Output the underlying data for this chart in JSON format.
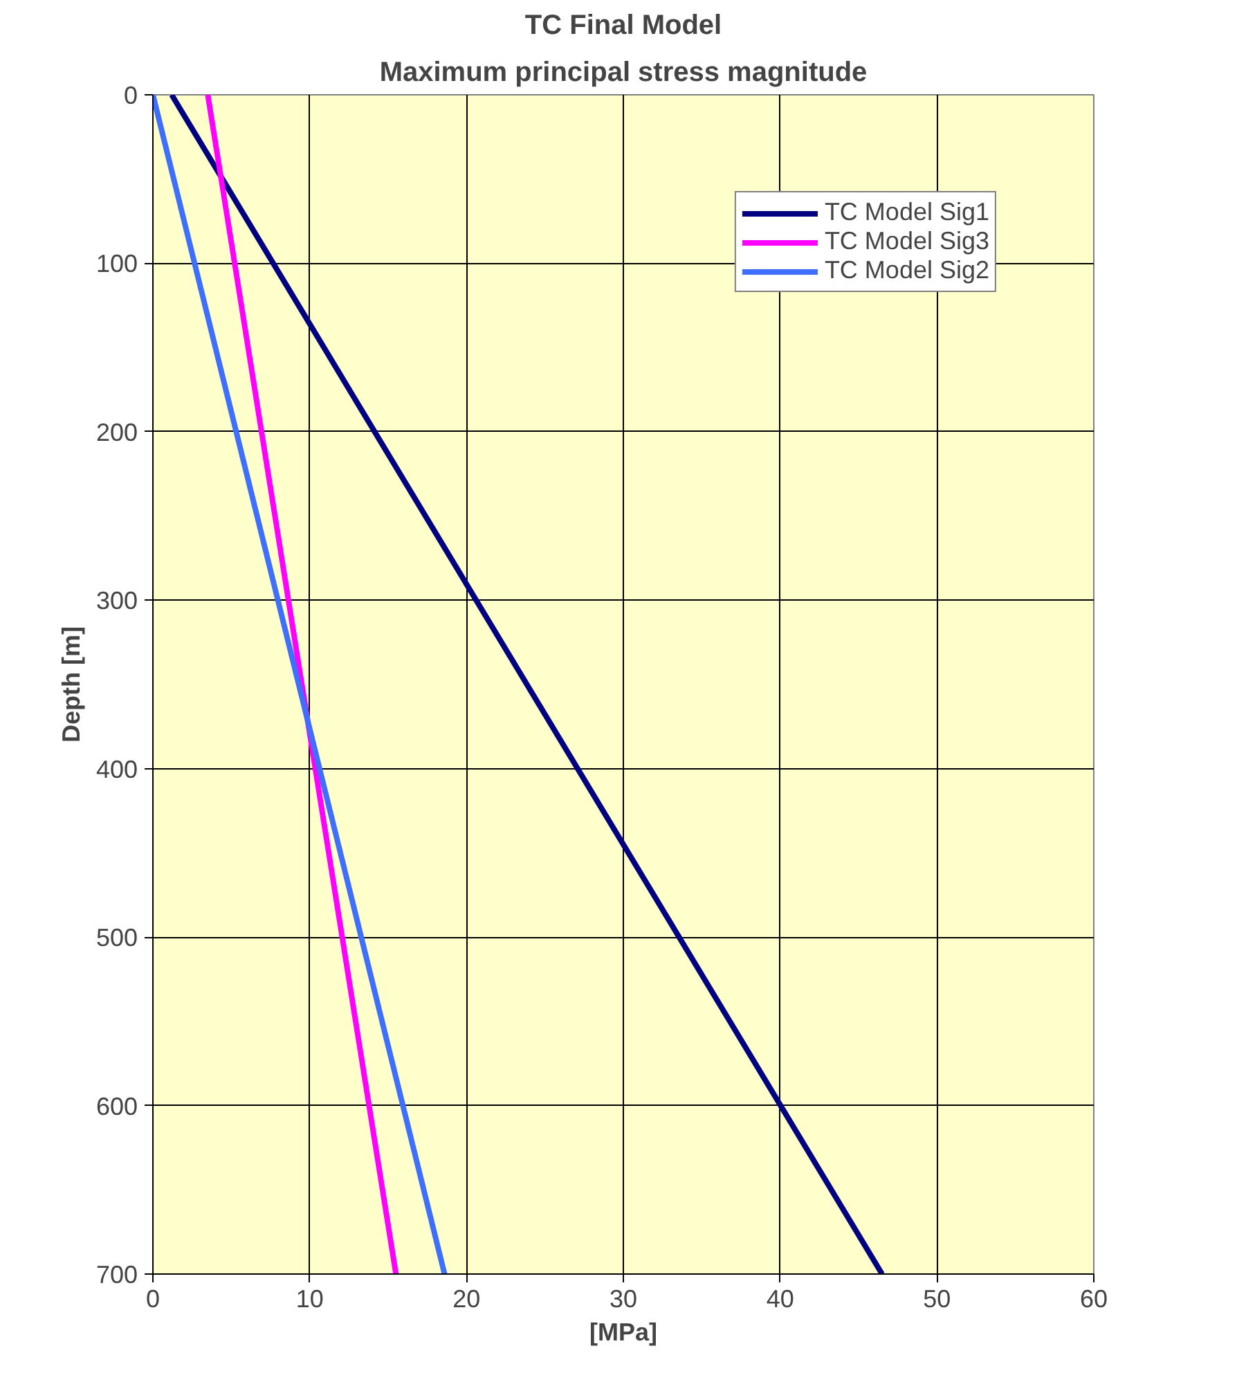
{
  "chart_data": {
    "type": "line",
    "title": "TC Final Model",
    "subtitle": "Maximum principal stress magnitude",
    "xlabel": "[MPa]",
    "ylabel": "Depth [m]",
    "xlim": [
      0,
      60
    ],
    "ylim": [
      700,
      0
    ],
    "xticks": [
      0,
      10,
      20,
      30,
      40,
      50,
      60
    ],
    "yticks": [
      0,
      100,
      200,
      300,
      400,
      500,
      600,
      700
    ],
    "grid": true,
    "legend": "top right",
    "series": [
      {
        "name": "TC Model Sig1",
        "color": "#000080",
        "x": [
          1.2,
          46.5
        ],
        "values": [
          0,
          700
        ]
      },
      {
        "name": "TC Model Sig3",
        "color": "#ff00ff",
        "x": [
          3.5,
          15.5
        ],
        "values": [
          0,
          700
        ]
      },
      {
        "name": "TC Model Sig2",
        "color": "#3f6fff",
        "x": [
          0,
          18.6
        ],
        "values": [
          0,
          700
        ]
      }
    ]
  }
}
